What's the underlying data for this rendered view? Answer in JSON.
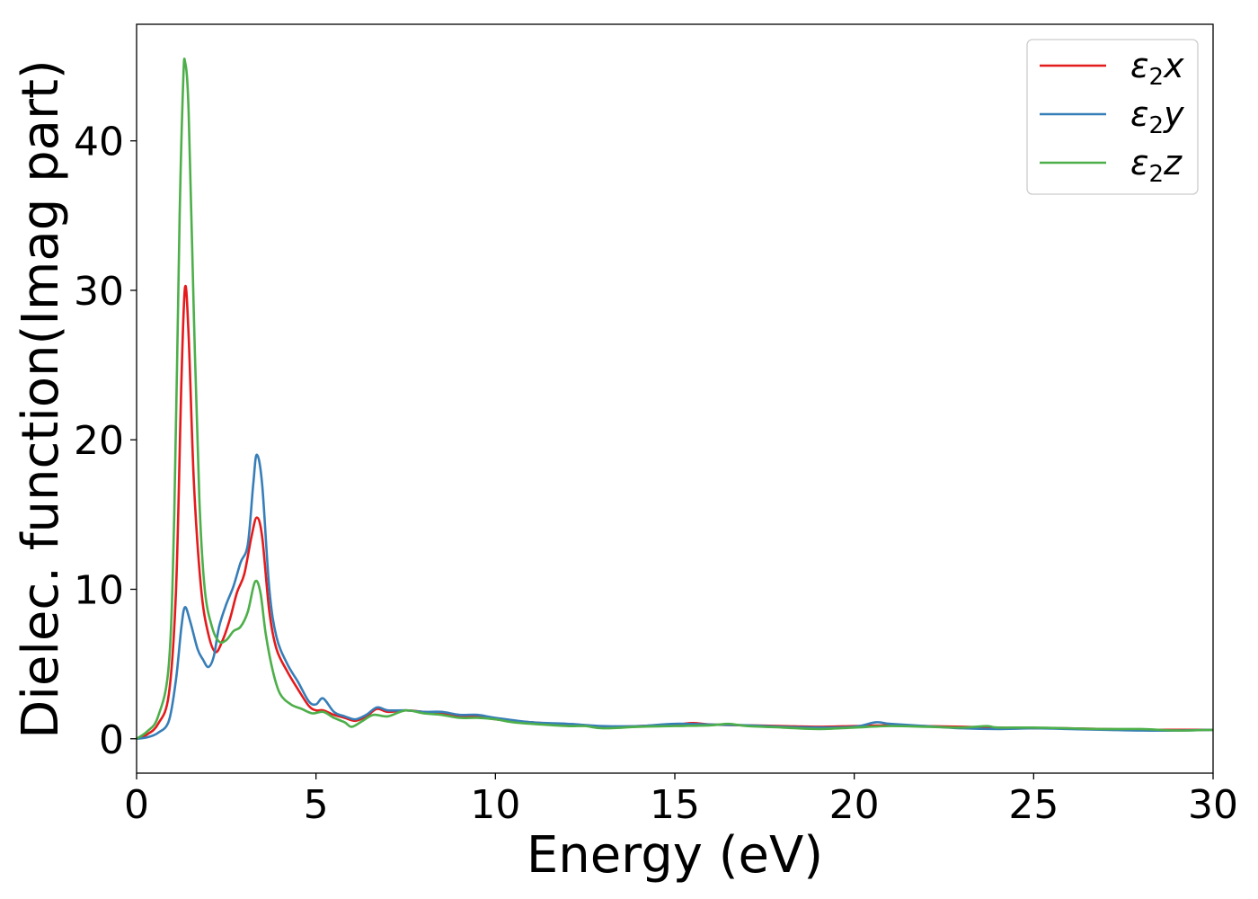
{
  "chart_data": {
    "type": "line",
    "xlabel": "Energy (eV)",
    "ylabel": "Dielec. function(Imag part)",
    "xlim": [
      0,
      30
    ],
    "ylim": [
      -2.3,
      47.8
    ],
    "xticks": [
      "0",
      "5",
      "10",
      "15",
      "20",
      "25",
      "30"
    ],
    "yticks": [
      "0",
      "10",
      "20",
      "30",
      "40"
    ],
    "grid": false,
    "legend_position": "top-right",
    "series": [
      {
        "name": "ε2x",
        "legend_base": "ε",
        "legend_sub": "2",
        "legend_tail": "x",
        "color": "#e41a1c",
        "points": [
          [
            0,
            0
          ],
          [
            0.3,
            0.3
          ],
          [
            0.6,
            1
          ],
          [
            0.9,
            3
          ],
          [
            1.1,
            10
          ],
          [
            1.25,
            24
          ],
          [
            1.35,
            30.2
          ],
          [
            1.45,
            27
          ],
          [
            1.6,
            17
          ],
          [
            1.8,
            10
          ],
          [
            2.0,
            7
          ],
          [
            2.2,
            5.8
          ],
          [
            2.4,
            6.6
          ],
          [
            2.6,
            8
          ],
          [
            2.8,
            9.8
          ],
          [
            3.0,
            11
          ],
          [
            3.2,
            13.5
          ],
          [
            3.35,
            14.8
          ],
          [
            3.5,
            13.5
          ],
          [
            3.7,
            8.5
          ],
          [
            3.9,
            6
          ],
          [
            4.2,
            4.5
          ],
          [
            4.5,
            3.3
          ],
          [
            4.8,
            2.2
          ],
          [
            5.0,
            1.9
          ],
          [
            5.2,
            1.9
          ],
          [
            5.5,
            1.6
          ],
          [
            5.8,
            1.4
          ],
          [
            6.1,
            1.2
          ],
          [
            6.4,
            1.5
          ],
          [
            6.7,
            2.0
          ],
          [
            7.0,
            1.8
          ],
          [
            7.5,
            1.9
          ],
          [
            8.0,
            1.8
          ],
          [
            8.5,
            1.7
          ],
          [
            9.0,
            1.5
          ],
          [
            9.5,
            1.5
          ],
          [
            10,
            1.3
          ],
          [
            11,
            1.1
          ],
          [
            12,
            0.95
          ],
          [
            12.5,
            0.9
          ],
          [
            13,
            0.8
          ],
          [
            14,
            0.85
          ],
          [
            15,
            0.95
          ],
          [
            15.5,
            1.05
          ],
          [
            16,
            0.95
          ],
          [
            17,
            0.9
          ],
          [
            18,
            0.85
          ],
          [
            19,
            0.8
          ],
          [
            20,
            0.85
          ],
          [
            21,
            0.9
          ],
          [
            22,
            0.85
          ],
          [
            23,
            0.8
          ],
          [
            24,
            0.75
          ],
          [
            25,
            0.7
          ],
          [
            26,
            0.7
          ],
          [
            27,
            0.65
          ],
          [
            28,
            0.6
          ],
          [
            29,
            0.6
          ],
          [
            30,
            0.6
          ]
        ]
      },
      {
        "name": "ε2y",
        "legend_base": "ε",
        "legend_sub": "2",
        "legend_tail": "y",
        "color": "#377eb8",
        "points": [
          [
            0,
            0
          ],
          [
            0.3,
            0.1
          ],
          [
            0.6,
            0.4
          ],
          [
            0.9,
            1.2
          ],
          [
            1.1,
            4
          ],
          [
            1.25,
            7.5
          ],
          [
            1.35,
            8.8
          ],
          [
            1.5,
            7.8
          ],
          [
            1.7,
            6
          ],
          [
            1.85,
            5.3
          ],
          [
            2.0,
            4.8
          ],
          [
            2.15,
            5.5
          ],
          [
            2.3,
            7.5
          ],
          [
            2.5,
            9
          ],
          [
            2.7,
            10.2
          ],
          [
            2.9,
            11.8
          ],
          [
            3.1,
            13
          ],
          [
            3.25,
            17
          ],
          [
            3.35,
            19
          ],
          [
            3.5,
            17
          ],
          [
            3.7,
            10
          ],
          [
            3.9,
            6.8
          ],
          [
            4.2,
            5
          ],
          [
            4.5,
            3.8
          ],
          [
            4.8,
            2.5
          ],
          [
            5.0,
            2.3
          ],
          [
            5.2,
            2.7
          ],
          [
            5.5,
            1.8
          ],
          [
            5.8,
            1.5
          ],
          [
            6.1,
            1.3
          ],
          [
            6.4,
            1.6
          ],
          [
            6.7,
            2.1
          ],
          [
            7.0,
            1.9
          ],
          [
            7.5,
            1.9
          ],
          [
            8.0,
            1.8
          ],
          [
            8.5,
            1.8
          ],
          [
            9.0,
            1.6
          ],
          [
            9.5,
            1.6
          ],
          [
            10,
            1.4
          ],
          [
            11,
            1.1
          ],
          [
            12,
            1.0
          ],
          [
            13,
            0.85
          ],
          [
            14,
            0.85
          ],
          [
            15,
            1.0
          ],
          [
            16,
            0.95
          ],
          [
            17,
            0.9
          ],
          [
            18,
            0.8
          ],
          [
            19,
            0.75
          ],
          [
            20,
            0.8
          ],
          [
            20.6,
            1.1
          ],
          [
            21,
            1.0
          ],
          [
            22,
            0.85
          ],
          [
            23,
            0.7
          ],
          [
            24,
            0.65
          ],
          [
            25,
            0.7
          ],
          [
            26,
            0.65
          ],
          [
            27,
            0.6
          ],
          [
            28,
            0.55
          ],
          [
            29,
            0.55
          ],
          [
            30,
            0.6
          ]
        ]
      },
      {
        "name": "ε2z",
        "legend_base": "ε",
        "legend_sub": "2",
        "legend_tail": "z",
        "color": "#4daf4a",
        "points": [
          [
            0,
            0
          ],
          [
            0.3,
            0.5
          ],
          [
            0.6,
            1.5
          ],
          [
            0.9,
            5
          ],
          [
            1.05,
            15
          ],
          [
            1.2,
            35
          ],
          [
            1.3,
            44
          ],
          [
            1.35,
            45.3
          ],
          [
            1.45,
            42
          ],
          [
            1.6,
            28
          ],
          [
            1.75,
            16
          ],
          [
            1.9,
            10
          ],
          [
            2.1,
            7.5
          ],
          [
            2.3,
            6.5
          ],
          [
            2.5,
            6.6
          ],
          [
            2.7,
            7.2
          ],
          [
            2.9,
            7.5
          ],
          [
            3.1,
            8.5
          ],
          [
            3.3,
            10.5
          ],
          [
            3.45,
            9.8
          ],
          [
            3.6,
            7
          ],
          [
            3.8,
            4.5
          ],
          [
            4.0,
            3.0
          ],
          [
            4.3,
            2.3
          ],
          [
            4.6,
            2.0
          ],
          [
            4.9,
            1.7
          ],
          [
            5.2,
            1.8
          ],
          [
            5.5,
            1.4
          ],
          [
            5.8,
            1.1
          ],
          [
            6.0,
            0.8
          ],
          [
            6.3,
            1.2
          ],
          [
            6.6,
            1.6
          ],
          [
            7.0,
            1.5
          ],
          [
            7.5,
            1.9
          ],
          [
            8.0,
            1.7
          ],
          [
            8.5,
            1.6
          ],
          [
            9.0,
            1.4
          ],
          [
            9.5,
            1.4
          ],
          [
            10,
            1.3
          ],
          [
            10.5,
            1.1
          ],
          [
            11,
            1.0
          ],
          [
            12,
            0.85
          ],
          [
            12.5,
            0.85
          ],
          [
            13,
            0.7
          ],
          [
            14,
            0.8
          ],
          [
            15,
            0.85
          ],
          [
            16,
            0.9
          ],
          [
            16.5,
            1.0
          ],
          [
            17,
            0.85
          ],
          [
            18,
            0.75
          ],
          [
            19,
            0.65
          ],
          [
            20,
            0.75
          ],
          [
            21,
            0.85
          ],
          [
            22,
            0.8
          ],
          [
            23,
            0.75
          ],
          [
            23.7,
            0.85
          ],
          [
            24,
            0.75
          ],
          [
            25,
            0.75
          ],
          [
            26,
            0.7
          ],
          [
            27,
            0.65
          ],
          [
            28,
            0.65
          ],
          [
            29,
            0.55
          ],
          [
            30,
            0.6
          ]
        ]
      }
    ]
  }
}
